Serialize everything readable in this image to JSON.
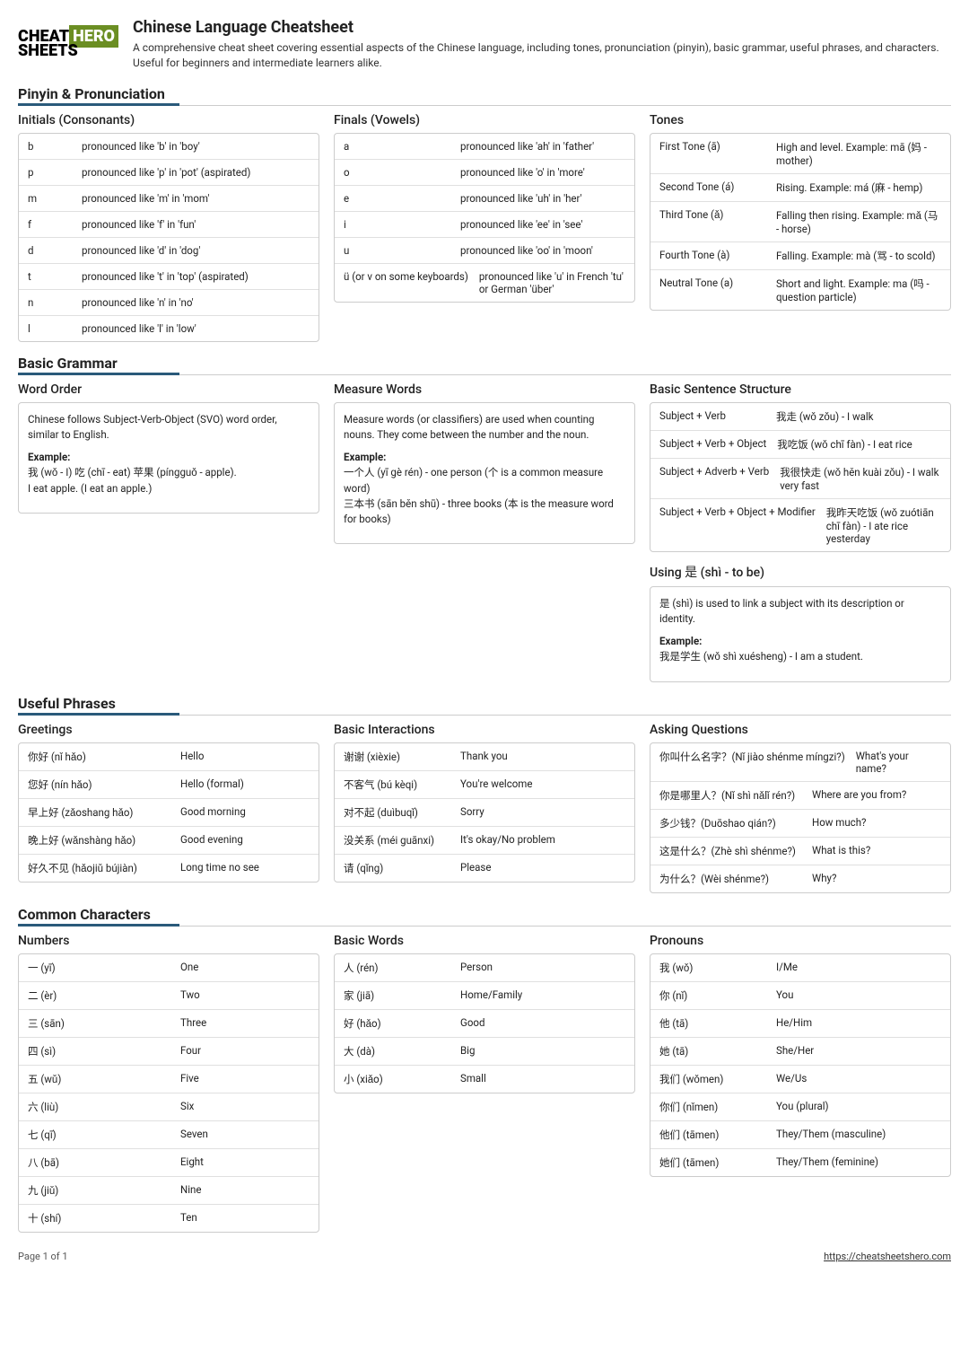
{
  "header": {
    "logo_cheat": "CHEAT",
    "logo_sheets": "SHEETS",
    "logo_hero": "HERO",
    "title": "Chinese Language Cheatsheet",
    "subtitle": "A comprehensive cheat sheet covering essential aspects of the Chinese language, including tones, pronunciation (pinyin), basic grammar, useful phrases, and characters. Useful for beginners and intermediate learners alike."
  },
  "sections": {
    "pinyin": {
      "title": "Pinyin & Pronunciation",
      "initials": {
        "title": "Initials (Consonants)",
        "rows": [
          {
            "k": "b",
            "v": "pronounced like 'b' in 'boy'"
          },
          {
            "k": "p",
            "v": "pronounced like 'p' in 'pot' (aspirated)"
          },
          {
            "k": "m",
            "v": "pronounced like 'm' in 'mom'"
          },
          {
            "k": "f",
            "v": "pronounced like 'f' in 'fun'"
          },
          {
            "k": "d",
            "v": "pronounced like 'd' in 'dog'"
          },
          {
            "k": "t",
            "v": "pronounced like 't' in 'top' (aspirated)"
          },
          {
            "k": "n",
            "v": "pronounced like 'n' in 'no'"
          },
          {
            "k": "l",
            "v": "pronounced like 'l' in 'low'"
          }
        ]
      },
      "finals": {
        "title": "Finals (Vowels)",
        "rows": [
          {
            "k": "a",
            "v": "pronounced like 'ah' in 'father'"
          },
          {
            "k": "o",
            "v": "pronounced like 'o' in 'more'"
          },
          {
            "k": "e",
            "v": "pronounced like 'uh' in 'her'"
          },
          {
            "k": "i",
            "v": "pronounced like 'ee' in 'see'"
          },
          {
            "k": "u",
            "v": "pronounced like 'oo' in 'moon'"
          },
          {
            "k": "ü (or v on some keyboards)",
            "v": "pronounced like 'u' in French 'tu' or German 'über'"
          }
        ]
      },
      "tones": {
        "title": "Tones",
        "rows": [
          {
            "k": "First Tone (ā)",
            "v": "High and level. Example: mā (妈 - mother)"
          },
          {
            "k": "Second Tone (á)",
            "v": "Rising. Example: má (麻 - hemp)"
          },
          {
            "k": "Third Tone (ǎ)",
            "v": "Falling then rising. Example: mǎ (马 - horse)"
          },
          {
            "k": "Fourth Tone (à)",
            "v": "Falling. Example: mà (骂 - to scold)"
          },
          {
            "k": "Neutral Tone (a)",
            "v": "Short and light. Example: ma (吗 - question particle)"
          }
        ]
      }
    },
    "grammar": {
      "title": "Basic Grammar",
      "wordorder": {
        "title": "Word Order",
        "text1": "Chinese follows Subject-Verb-Object (SVO) word order, similar to English.",
        "example_label": "Example:",
        "example1": "我 (wǒ - I) 吃 (chī - eat) 苹果 (píngguǒ - apple).",
        "example2": "I eat apple. (I eat an apple.)"
      },
      "measure": {
        "title": "Measure Words",
        "text1": "Measure words (or classifiers) are used when counting nouns. They come between the number and the noun.",
        "example_label": "Example:",
        "example1": "一个人 (yī gè rén) - one person (个 is a common measure word)",
        "example2": "三本书 (sān běn shū) - three books (本 is the measure word for books)"
      },
      "structure": {
        "title": "Basic Sentence Structure",
        "rows": [
          {
            "k": "Subject + Verb",
            "v": "我走 (wǒ zǒu) - I walk"
          },
          {
            "k": "Subject + Verb + Object",
            "v": "我吃饭 (wǒ chī fàn) - I eat rice"
          },
          {
            "k": "Subject + Adverb + Verb",
            "v": "我很快走 (wǒ hěn kuài zǒu) - I walk very fast"
          },
          {
            "k": "Subject + Verb + Object + Modifier",
            "v": "我昨天吃饭 (wǒ zuótiān chī fàn) - I ate rice yesterday"
          }
        ]
      },
      "shi": {
        "title": "Using 是 (shì - to be)",
        "text1": "是 (shì) is used to link a subject with its description or identity.",
        "example_label": "Example:",
        "example1": "我是学生 (wǒ shì xuésheng) - I am a student."
      }
    },
    "phrases": {
      "title": "Useful Phrases",
      "greetings": {
        "title": "Greetings",
        "rows": [
          {
            "k": "你好 (nǐ hǎo)",
            "v": "Hello"
          },
          {
            "k": "您好 (nín hǎo)",
            "v": "Hello (formal)"
          },
          {
            "k": "早上好 (zǎoshang hǎo)",
            "v": "Good morning"
          },
          {
            "k": "晚上好 (wǎnshàng hǎo)",
            "v": "Good evening"
          },
          {
            "k": "好久不见 (hǎojiǔ bújiàn)",
            "v": "Long time no see"
          }
        ]
      },
      "interactions": {
        "title": "Basic Interactions",
        "rows": [
          {
            "k": "谢谢 (xièxie)",
            "v": "Thank you"
          },
          {
            "k": "不客气 (bú kèqi)",
            "v": "You're welcome"
          },
          {
            "k": "对不起 (duìbuqǐ)",
            "v": "Sorry"
          },
          {
            "k": "没关系 (méi guānxi)",
            "v": "It's okay/No problem"
          },
          {
            "k": "请 (qǐng)",
            "v": "Please"
          }
        ]
      },
      "questions": {
        "title": "Asking Questions",
        "rows": [
          {
            "k": "你叫什么名字？(Nǐ jiào shénme míngzi?)",
            "v": "What's your name?"
          },
          {
            "k": "你是哪里人？(Nǐ shì nǎlǐ rén?)",
            "v": "Where are you from?"
          },
          {
            "k": "多少钱？(Duōshao qián?)",
            "v": "How much?"
          },
          {
            "k": "这是什么？(Zhè shì shénme?)",
            "v": "What is this?"
          },
          {
            "k": "为什么？(Wèi shénme?)",
            "v": "Why?"
          }
        ]
      }
    },
    "characters": {
      "title": "Common Characters",
      "numbers": {
        "title": "Numbers",
        "rows": [
          {
            "k": "一 (yī)",
            "v": "One"
          },
          {
            "k": "二 (èr)",
            "v": "Two"
          },
          {
            "k": "三 (sān)",
            "v": "Three"
          },
          {
            "k": "四 (sì)",
            "v": "Four"
          },
          {
            "k": "五 (wǔ)",
            "v": "Five"
          },
          {
            "k": "六 (liù)",
            "v": "Six"
          },
          {
            "k": "七 (qī)",
            "v": "Seven"
          },
          {
            "k": "八 (bā)",
            "v": "Eight"
          },
          {
            "k": "九 (jiǔ)",
            "v": "Nine"
          },
          {
            "k": "十 (shí)",
            "v": "Ten"
          }
        ]
      },
      "basic": {
        "title": "Basic Words",
        "rows": [
          {
            "k": "人 (rén)",
            "v": "Person"
          },
          {
            "k": "家 (jiā)",
            "v": "Home/Family"
          },
          {
            "k": "好 (hǎo)",
            "v": "Good"
          },
          {
            "k": "大 (dà)",
            "v": "Big"
          },
          {
            "k": "小 (xiǎo)",
            "v": "Small"
          }
        ]
      },
      "pronouns": {
        "title": "Pronouns",
        "rows": [
          {
            "k": "我 (wǒ)",
            "v": "I/Me"
          },
          {
            "k": "你 (nǐ)",
            "v": "You"
          },
          {
            "k": "他 (tā)",
            "v": "He/Him"
          },
          {
            "k": "她 (tā)",
            "v": "She/Her"
          },
          {
            "k": "我们 (wǒmen)",
            "v": "We/Us"
          },
          {
            "k": "你们 (nǐmen)",
            "v": "You (plural)"
          },
          {
            "k": "他们 (tāmen)",
            "v": "They/Them (masculine)"
          },
          {
            "k": "她们 (tāmen)",
            "v": "They/Them (feminine)"
          }
        ]
      }
    }
  },
  "footer": {
    "page": "Page 1 of 1",
    "url": "https://cheatsheetshero.com"
  }
}
